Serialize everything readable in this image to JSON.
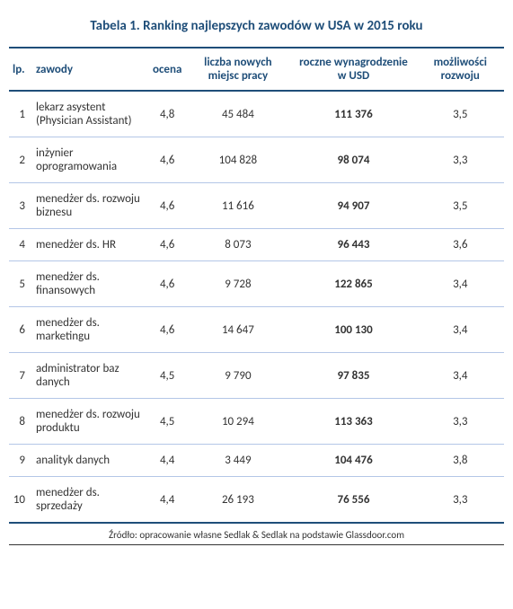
{
  "colors": {
    "heading": "#1f4e79",
    "border_thick": "#1f4e79",
    "border_thin": "#b4c6e7",
    "text": "#333333",
    "source_border": "#333333"
  },
  "title": "Tabela 1. Ranking najlepszych zawodów w USA w 2015 roku",
  "columns": {
    "lp": "lp.",
    "name": "zawody",
    "score": "ocena",
    "jobs": "liczba nowych miejsc pracy",
    "salary": "roczne wynagrodzenie w USD",
    "growth": "możliwości rozwoju"
  },
  "rows": [
    {
      "lp": "1",
      "name": "lekarz asystent (Physician Assistant)",
      "score": "4,8",
      "jobs": "45 484",
      "salary": "111 376",
      "growth": "3,5"
    },
    {
      "lp": "2",
      "name": "inżynier oprogramowania",
      "score": "4,6",
      "jobs": "104 828",
      "salary": "98 074",
      "growth": "3,3"
    },
    {
      "lp": "3",
      "name": "menedżer ds. rozwoju biznesu",
      "score": "4,6",
      "jobs": "11 616",
      "salary": "94 907",
      "growth": "3,5"
    },
    {
      "lp": "4",
      "name": "menedżer ds. HR",
      "score": "4,6",
      "jobs": "8 073",
      "salary": "96 443",
      "growth": "3,6"
    },
    {
      "lp": "5",
      "name": "menedżer ds. finansowych",
      "score": "4,6",
      "jobs": "9 728",
      "salary": "122 865",
      "growth": "3,4"
    },
    {
      "lp": "6",
      "name": "menedżer ds. marketingu",
      "score": "4,6",
      "jobs": "14 647",
      "salary": "100 130",
      "growth": "3,4"
    },
    {
      "lp": "7",
      "name": "administrator baz danych",
      "score": "4,5",
      "jobs": "9 790",
      "salary": "97 835",
      "growth": "3,4"
    },
    {
      "lp": "8",
      "name": "menedżer ds. rozwoju produktu",
      "score": "4,5",
      "jobs": "10 294",
      "salary": "113 363",
      "growth": "3,3"
    },
    {
      "lp": "9",
      "name": "analityk danych",
      "score": "4,4",
      "jobs": "3 449",
      "salary": "104 476",
      "growth": "3,8"
    },
    {
      "lp": "10",
      "name": "menedżer ds. sprzedaży",
      "score": "4,4",
      "jobs": "26 193",
      "salary": "76 556",
      "growth": "3,3"
    }
  ],
  "source": "Źródło: opracowanie własne Sedlak & Sedlak na podstawie Glassdoor.com"
}
